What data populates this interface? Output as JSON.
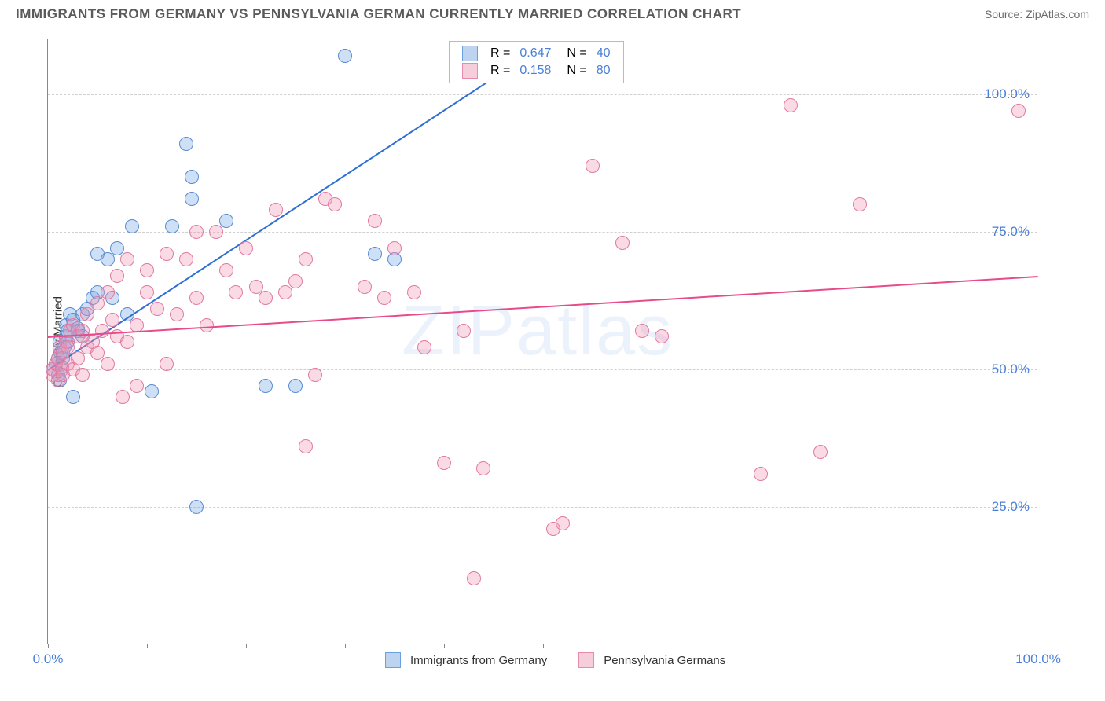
{
  "title": "IMMIGRANTS FROM GERMANY VS PENNSYLVANIA GERMAN CURRENTLY MARRIED CORRELATION CHART",
  "source": "Source: ZipAtlas.com",
  "watermark": "ZIPatlas",
  "y_axis_label": "Currently Married",
  "axis": {
    "xmin": 0,
    "xmax": 100,
    "ymin": 0,
    "ymax": 110,
    "y_ticks": [
      25,
      50,
      75,
      100
    ],
    "y_tick_labels": [
      "25.0%",
      "50.0%",
      "75.0%",
      "100.0%"
    ],
    "x_ticks": [
      0,
      10,
      20,
      30,
      40,
      50
    ],
    "x_label_left": "0.0%",
    "x_label_right": "100.0%",
    "grid_color": "#d0d0d0",
    "axis_color": "#888",
    "tick_label_color": "#4a7fd8"
  },
  "series": [
    {
      "key": "germany",
      "name": "Immigrants from Germany",
      "fill": "rgba(115,165,230,0.35)",
      "stroke": "#5a8bd0",
      "line_color": "#2e6fd6",
      "r_value": "0.647",
      "n_value": "40",
      "swatch_fill": "#bcd4f0",
      "swatch_stroke": "#6a9fe0",
      "radius": 9,
      "trend": {
        "x1": 0,
        "y1": 50,
        "x2": 50,
        "y2": 109
      },
      "points": [
        [
          0.5,
          50
        ],
        [
          0.8,
          51
        ],
        [
          1,
          49
        ],
        [
          1,
          52
        ],
        [
          1.2,
          48
        ],
        [
          1.2,
          55
        ],
        [
          1.3,
          53
        ],
        [
          1.4,
          50.5
        ],
        [
          1.5,
          52
        ],
        [
          1.7,
          54
        ],
        [
          1.8,
          56
        ],
        [
          1.8,
          58
        ],
        [
          2,
          55
        ],
        [
          2,
          57
        ],
        [
          2.2,
          60
        ],
        [
          2.5,
          45
        ],
        [
          2.5,
          59
        ],
        [
          3,
          57
        ],
        [
          3,
          57.5
        ],
        [
          3.5,
          60
        ],
        [
          3.5,
          56
        ],
        [
          4,
          61
        ],
        [
          4.5,
          63
        ],
        [
          5,
          64
        ],
        [
          5,
          71
        ],
        [
          6,
          70
        ],
        [
          6.5,
          63
        ],
        [
          7,
          72
        ],
        [
          8,
          60
        ],
        [
          8.5,
          76
        ],
        [
          10.5,
          46
        ],
        [
          12.5,
          76
        ],
        [
          14,
          91
        ],
        [
          14.5,
          81
        ],
        [
          14.5,
          85
        ],
        [
          15,
          25
        ],
        [
          18,
          77
        ],
        [
          22,
          47
        ],
        [
          25,
          47
        ],
        [
          30,
          107
        ],
        [
          33,
          71
        ],
        [
          35,
          70
        ]
      ]
    },
    {
      "key": "pa_german",
      "name": "Pennsylvania Germans",
      "fill": "rgba(240,150,180,0.35)",
      "stroke": "#e07aa0",
      "line_color": "#e84b8a",
      "r_value": "0.158",
      "n_value": "80",
      "swatch_fill": "#f6cdda",
      "swatch_stroke": "#e88aad",
      "radius": 9,
      "trend": {
        "x1": 0,
        "y1": 56,
        "x2": 100,
        "y2": 67
      },
      "points": [
        [
          0.5,
          49
        ],
        [
          0.5,
          50
        ],
        [
          0.8,
          51
        ],
        [
          1,
          48
        ],
        [
          1,
          52
        ],
        [
          1.2,
          54
        ],
        [
          1.4,
          50
        ],
        [
          1.5,
          49
        ],
        [
          1.5,
          53
        ],
        [
          1.8,
          55
        ],
        [
          2,
          51
        ],
        [
          2,
          54
        ],
        [
          2.2,
          57
        ],
        [
          2.5,
          50
        ],
        [
          2.5,
          58
        ],
        [
          3,
          52
        ],
        [
          3,
          56
        ],
        [
          3.5,
          49
        ],
        [
          3.5,
          57
        ],
        [
          4,
          54
        ],
        [
          4,
          60
        ],
        [
          4.5,
          55
        ],
        [
          5,
          53
        ],
        [
          5,
          62
        ],
        [
          5.5,
          57
        ],
        [
          6,
          51
        ],
        [
          6,
          64
        ],
        [
          6.5,
          59
        ],
        [
          7,
          56
        ],
        [
          7,
          67
        ],
        [
          7.5,
          45
        ],
        [
          8,
          55
        ],
        [
          8,
          70
        ],
        [
          9,
          47
        ],
        [
          9,
          58
        ],
        [
          10,
          64
        ],
        [
          10,
          68
        ],
        [
          11,
          61
        ],
        [
          12,
          51
        ],
        [
          12,
          71
        ],
        [
          13,
          60
        ],
        [
          14,
          70
        ],
        [
          15,
          63
        ],
        [
          15,
          75
        ],
        [
          16,
          58
        ],
        [
          17,
          75
        ],
        [
          18,
          68
        ],
        [
          19,
          64
        ],
        [
          20,
          72
        ],
        [
          21,
          65
        ],
        [
          22,
          63
        ],
        [
          23,
          79
        ],
        [
          24,
          64
        ],
        [
          25,
          66
        ],
        [
          26,
          36
        ],
        [
          26,
          70
        ],
        [
          27,
          49
        ],
        [
          28,
          81
        ],
        [
          29,
          80
        ],
        [
          32,
          65
        ],
        [
          33,
          77
        ],
        [
          34,
          63
        ],
        [
          35,
          72
        ],
        [
          37,
          64
        ],
        [
          38,
          54
        ],
        [
          40,
          33
        ],
        [
          42,
          57
        ],
        [
          43,
          12
        ],
        [
          44,
          32
        ],
        [
          46,
          108
        ],
        [
          47,
          107
        ],
        [
          51,
          21
        ],
        [
          52,
          22
        ],
        [
          55,
          87
        ],
        [
          58,
          73
        ],
        [
          60,
          57
        ],
        [
          62,
          56
        ],
        [
          72,
          31
        ],
        [
          75,
          98
        ],
        [
          78,
          35
        ],
        [
          82,
          80
        ],
        [
          98,
          97
        ]
      ]
    }
  ],
  "legend_top": {
    "r_label": "R =",
    "n_label": "N ="
  },
  "styling": {
    "marker_border_width": 1.5,
    "trend_line_width": 2
  }
}
